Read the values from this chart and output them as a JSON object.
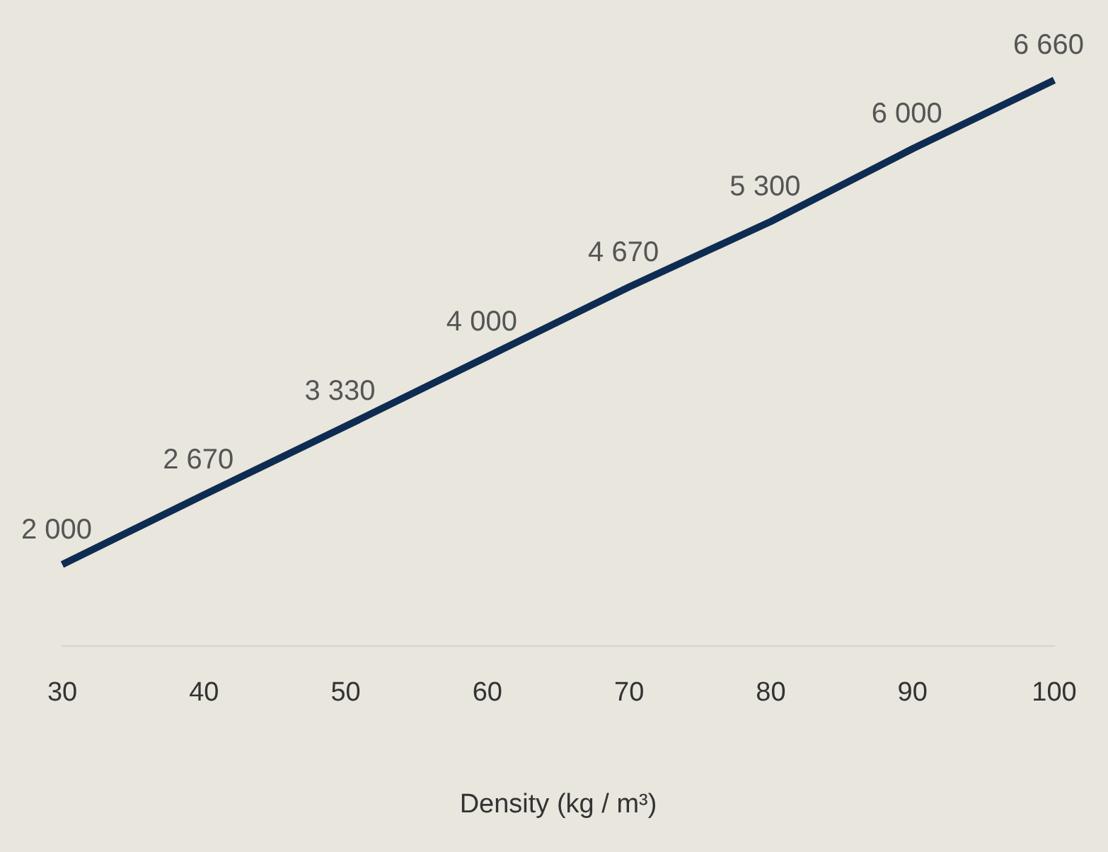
{
  "chart_data": {
    "type": "line",
    "xlabel": "Density (kg / m³)",
    "categories": [
      "30",
      "40",
      "50",
      "60",
      "70",
      "80",
      "90",
      "100"
    ],
    "series": [
      {
        "color": "#0e2c52",
        "values": [
          2000,
          2670,
          3330,
          4000,
          4670,
          5300,
          6000,
          6660
        ],
        "value_labels": [
          "2 000",
          "2 670",
          "3 330",
          "4 000",
          "4 670",
          "5 300",
          "6 000",
          "6 660"
        ]
      }
    ],
    "grid": false,
    "legend": false,
    "marker": "none",
    "line_style": "solid"
  }
}
